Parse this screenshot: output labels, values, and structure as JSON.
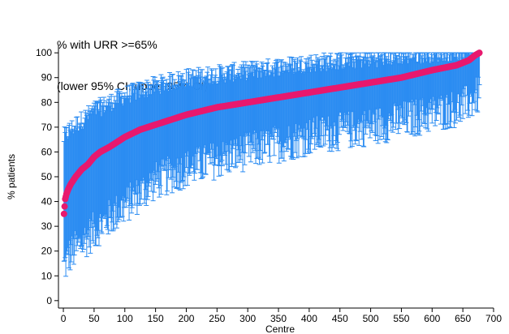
{
  "chart_data": {
    "type": "scatter",
    "title": "% with URR >=65%",
    "subtitle": "(lower 95% CI, upper 95% CI)",
    "xlabel": "Centre",
    "ylabel": "% patients",
    "xlim": [
      -8,
      700
    ],
    "ylim": [
      -3,
      103
    ],
    "x_ticks": [
      0,
      50,
      100,
      150,
      200,
      250,
      300,
      350,
      400,
      450,
      500,
      550,
      600,
      650,
      700
    ],
    "y_ticks": [
      0,
      10,
      20,
      30,
      40,
      50,
      60,
      70,
      80,
      90,
      100
    ],
    "n_centres": 677,
    "point_estimate_curve": {
      "description_free": true,
      "x": [
        1,
        2,
        3,
        5,
        8,
        12,
        20,
        30,
        40,
        50,
        60,
        75,
        100,
        125,
        150,
        175,
        200,
        250,
        300,
        350,
        400,
        450,
        500,
        550,
        600,
        640,
        660,
        670,
        677
      ],
      "y": [
        35,
        38,
        41,
        43,
        45,
        47,
        50,
        53,
        55,
        58,
        60,
        62,
        66,
        69,
        71,
        73,
        75,
        78,
        80,
        82,
        84,
        86,
        88,
        90,
        93,
        95,
        97,
        99,
        100
      ]
    },
    "ci_band": {
      "x": [
        1,
        10,
        30,
        50,
        100,
        150,
        200,
        300,
        400,
        500,
        600,
        650,
        677
      ],
      "lower": [
        15,
        20,
        25,
        30,
        40,
        50,
        55,
        62,
        68,
        72,
        77,
        80,
        85
      ],
      "upper": [
        65,
        68,
        72,
        76,
        82,
        86,
        89,
        92,
        95,
        97,
        99,
        100,
        100
      ]
    },
    "grid": false,
    "legend": "none",
    "colors": {
      "ci_bars": "#2b8cf2",
      "points": "#e8196e",
      "axis": "#000000"
    }
  }
}
